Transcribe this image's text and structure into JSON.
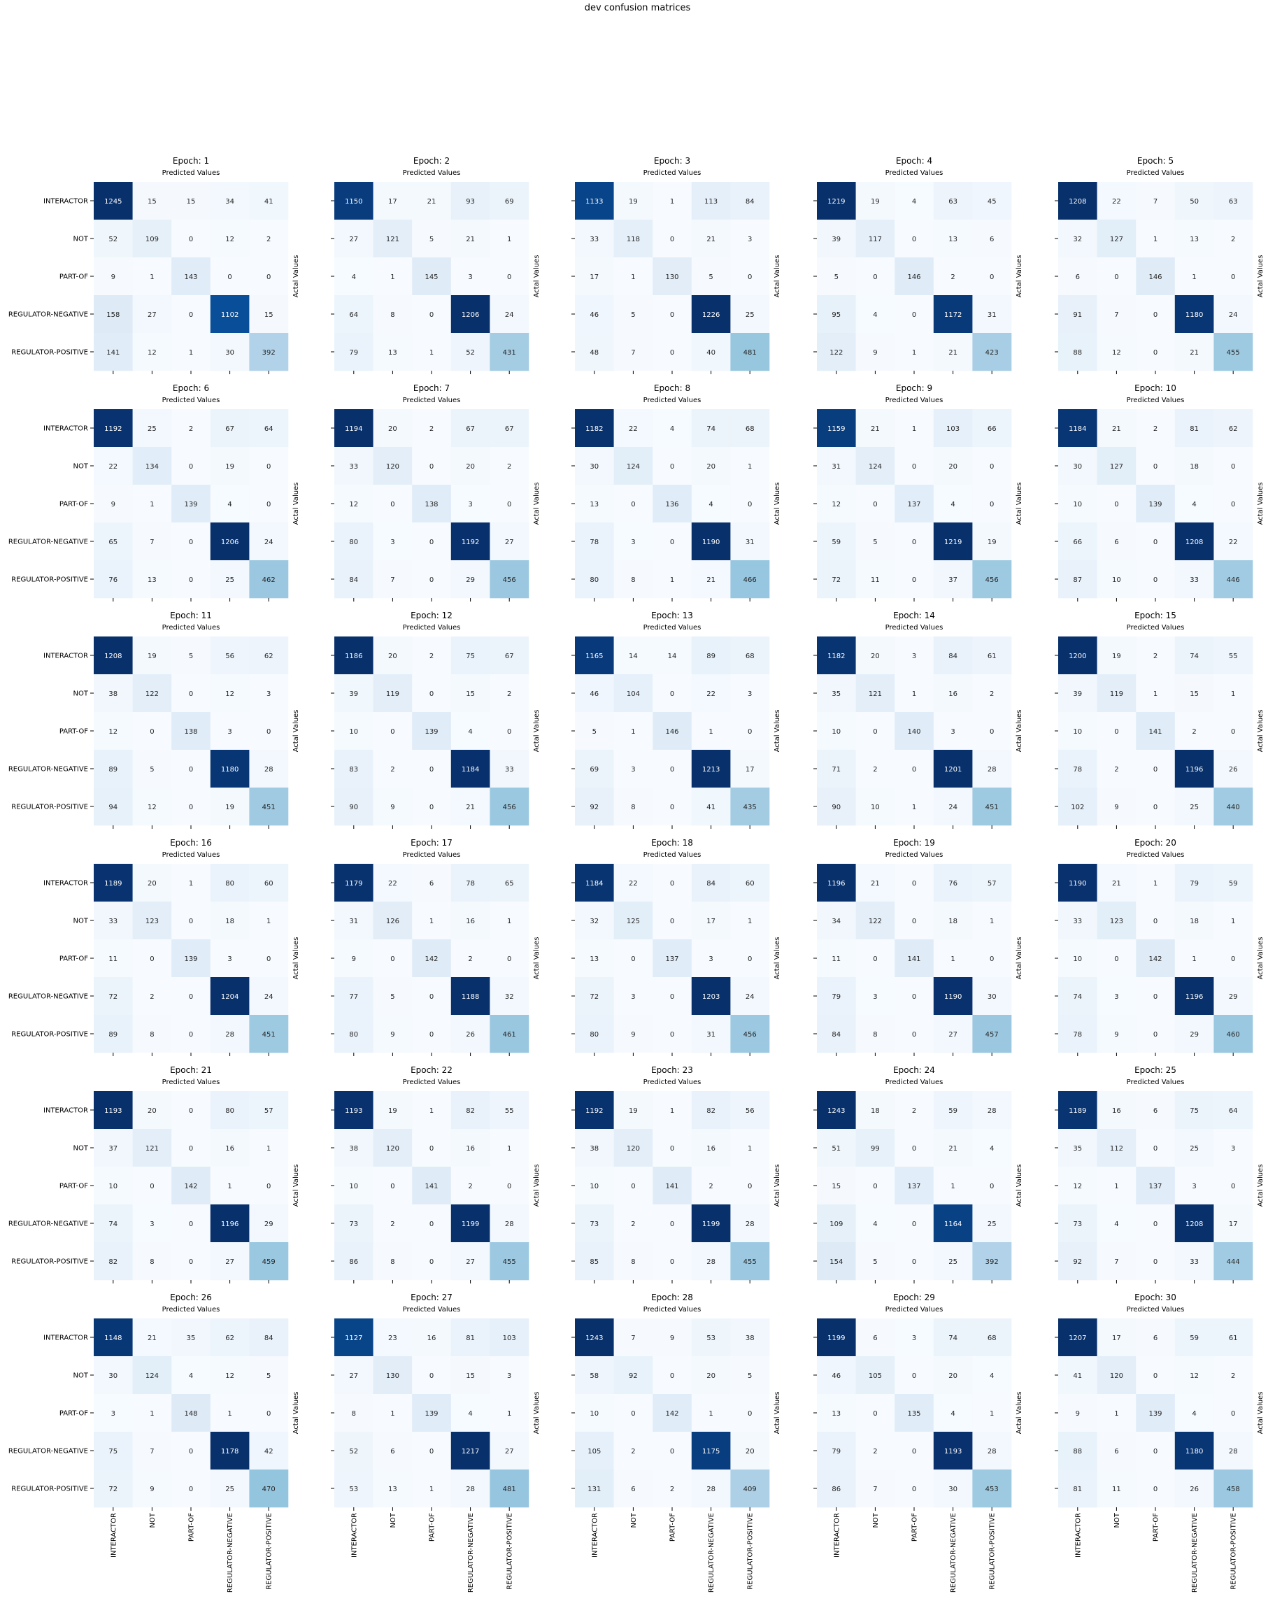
{
  "figure": {
    "title": "dev confusion matrices"
  },
  "colors": {
    "cmap": "Blues",
    "low": "#f7fbff",
    "high": "#08306b"
  },
  "chart_data": {
    "type": "heatmap",
    "labels": [
      "INTERACTOR",
      "NOT",
      "PART-OF",
      "REGULATOR-NEGATIVE",
      "REGULATOR-POSITIVE"
    ],
    "top_label": "Predicted Values",
    "side_label": "Actal Values",
    "grid": false,
    "colorscale": "Blues",
    "matrices": [
      {
        "title": "Epoch: 1",
        "values": [
          [
            1245,
            15,
            15,
            34,
            41
          ],
          [
            52,
            109,
            0,
            12,
            2
          ],
          [
            9,
            1,
            143,
            0,
            0
          ],
          [
            158,
            27,
            0,
            1102,
            15
          ],
          [
            141,
            12,
            1,
            30,
            392
          ]
        ]
      },
      {
        "title": "Epoch: 2",
        "values": [
          [
            1150,
            17,
            21,
            93,
            69
          ],
          [
            27,
            121,
            5,
            21,
            1
          ],
          [
            4,
            1,
            145,
            3,
            0
          ],
          [
            64,
            8,
            0,
            1206,
            24
          ],
          [
            79,
            13,
            1,
            52,
            431
          ]
        ]
      },
      {
        "title": "Epoch: 3",
        "values": [
          [
            1133,
            19,
            1,
            113,
            84
          ],
          [
            33,
            118,
            0,
            21,
            3
          ],
          [
            17,
            1,
            130,
            5,
            0
          ],
          [
            46,
            5,
            0,
            1226,
            25
          ],
          [
            48,
            7,
            0,
            40,
            481
          ]
        ]
      },
      {
        "title": "Epoch: 4",
        "values": [
          [
            1219,
            19,
            4,
            63,
            45
          ],
          [
            39,
            117,
            0,
            13,
            6
          ],
          [
            5,
            0,
            146,
            2,
            0
          ],
          [
            95,
            4,
            0,
            1172,
            31
          ],
          [
            122,
            9,
            1,
            21,
            423
          ]
        ]
      },
      {
        "title": "Epoch: 5",
        "values": [
          [
            1208,
            22,
            7,
            50,
            63
          ],
          [
            32,
            127,
            1,
            13,
            2
          ],
          [
            6,
            0,
            146,
            1,
            0
          ],
          [
            91,
            7,
            0,
            1180,
            24
          ],
          [
            88,
            12,
            0,
            21,
            455
          ]
        ]
      },
      {
        "title": "Epoch: 6",
        "values": [
          [
            1192,
            25,
            2,
            67,
            64
          ],
          [
            22,
            134,
            0,
            19,
            0
          ],
          [
            9,
            1,
            139,
            4,
            0
          ],
          [
            65,
            7,
            0,
            1206,
            24
          ],
          [
            76,
            13,
            0,
            25,
            462
          ]
        ]
      },
      {
        "title": "Epoch: 7",
        "values": [
          [
            1194,
            20,
            2,
            67,
            67
          ],
          [
            33,
            120,
            0,
            20,
            2
          ],
          [
            12,
            0,
            138,
            3,
            0
          ],
          [
            80,
            3,
            0,
            1192,
            27
          ],
          [
            84,
            7,
            0,
            29,
            456
          ]
        ]
      },
      {
        "title": "Epoch: 8",
        "values": [
          [
            1182,
            22,
            4,
            74,
            68
          ],
          [
            30,
            124,
            0,
            20,
            1
          ],
          [
            13,
            0,
            136,
            4,
            0
          ],
          [
            78,
            3,
            0,
            1190,
            31
          ],
          [
            80,
            8,
            1,
            21,
            466
          ]
        ]
      },
      {
        "title": "Epoch: 9",
        "values": [
          [
            1159,
            21,
            1,
            103,
            66
          ],
          [
            31,
            124,
            0,
            20,
            0
          ],
          [
            12,
            0,
            137,
            4,
            0
          ],
          [
            59,
            5,
            0,
            1219,
            19
          ],
          [
            72,
            11,
            0,
            37,
            456
          ]
        ]
      },
      {
        "title": "Epoch: 10",
        "values": [
          [
            1184,
            21,
            2,
            81,
            62
          ],
          [
            30,
            127,
            0,
            18,
            0
          ],
          [
            10,
            0,
            139,
            4,
            0
          ],
          [
            66,
            6,
            0,
            1208,
            22
          ],
          [
            87,
            10,
            0,
            33,
            446
          ]
        ]
      },
      {
        "title": "Epoch: 11",
        "values": [
          [
            1208,
            19,
            5,
            56,
            62
          ],
          [
            38,
            122,
            0,
            12,
            3
          ],
          [
            12,
            0,
            138,
            3,
            0
          ],
          [
            89,
            5,
            0,
            1180,
            28
          ],
          [
            94,
            12,
            0,
            19,
            451
          ]
        ]
      },
      {
        "title": "Epoch: 12",
        "values": [
          [
            1186,
            20,
            2,
            75,
            67
          ],
          [
            39,
            119,
            0,
            15,
            2
          ],
          [
            10,
            0,
            139,
            4,
            0
          ],
          [
            83,
            2,
            0,
            1184,
            33
          ],
          [
            90,
            9,
            0,
            21,
            456
          ]
        ]
      },
      {
        "title": "Epoch: 13",
        "values": [
          [
            1165,
            14,
            14,
            89,
            68
          ],
          [
            46,
            104,
            0,
            22,
            3
          ],
          [
            5,
            1,
            146,
            1,
            0
          ],
          [
            69,
            3,
            0,
            1213,
            17
          ],
          [
            92,
            8,
            0,
            41,
            435
          ]
        ]
      },
      {
        "title": "Epoch: 14",
        "values": [
          [
            1182,
            20,
            3,
            84,
            61
          ],
          [
            35,
            121,
            1,
            16,
            2
          ],
          [
            10,
            0,
            140,
            3,
            0
          ],
          [
            71,
            2,
            0,
            1201,
            28
          ],
          [
            90,
            10,
            1,
            24,
            451
          ]
        ]
      },
      {
        "title": "Epoch: 15",
        "values": [
          [
            1200,
            19,
            2,
            74,
            55
          ],
          [
            39,
            119,
            1,
            15,
            1
          ],
          [
            10,
            0,
            141,
            2,
            0
          ],
          [
            78,
            2,
            0,
            1196,
            26
          ],
          [
            102,
            9,
            0,
            25,
            440
          ]
        ]
      },
      {
        "title": "Epoch: 16",
        "values": [
          [
            1189,
            20,
            1,
            80,
            60
          ],
          [
            33,
            123,
            0,
            18,
            1
          ],
          [
            11,
            0,
            139,
            3,
            0
          ],
          [
            72,
            2,
            0,
            1204,
            24
          ],
          [
            89,
            8,
            0,
            28,
            451
          ]
        ]
      },
      {
        "title": "Epoch: 17",
        "values": [
          [
            1179,
            22,
            6,
            78,
            65
          ],
          [
            31,
            126,
            1,
            16,
            1
          ],
          [
            9,
            0,
            142,
            2,
            0
          ],
          [
            77,
            5,
            0,
            1188,
            32
          ],
          [
            80,
            9,
            0,
            26,
            461
          ]
        ]
      },
      {
        "title": "Epoch: 18",
        "values": [
          [
            1184,
            22,
            0,
            84,
            60
          ],
          [
            32,
            125,
            0,
            17,
            1
          ],
          [
            13,
            0,
            137,
            3,
            0
          ],
          [
            72,
            3,
            0,
            1203,
            24
          ],
          [
            80,
            9,
            0,
            31,
            456
          ]
        ]
      },
      {
        "title": "Epoch: 19",
        "values": [
          [
            1196,
            21,
            0,
            76,
            57
          ],
          [
            34,
            122,
            0,
            18,
            1
          ],
          [
            11,
            0,
            141,
            1,
            0
          ],
          [
            79,
            3,
            0,
            1190,
            30
          ],
          [
            84,
            8,
            0,
            27,
            457
          ]
        ]
      },
      {
        "title": "Epoch: 20",
        "values": [
          [
            1190,
            21,
            1,
            79,
            59
          ],
          [
            33,
            123,
            0,
            18,
            1
          ],
          [
            10,
            0,
            142,
            1,
            0
          ],
          [
            74,
            3,
            0,
            1196,
            29
          ],
          [
            78,
            9,
            0,
            29,
            460
          ]
        ]
      },
      {
        "title": "Epoch: 21",
        "values": [
          [
            1193,
            20,
            0,
            80,
            57
          ],
          [
            37,
            121,
            0,
            16,
            1
          ],
          [
            10,
            0,
            142,
            1,
            0
          ],
          [
            74,
            3,
            0,
            1196,
            29
          ],
          [
            82,
            8,
            0,
            27,
            459
          ]
        ]
      },
      {
        "title": "Epoch: 22",
        "values": [
          [
            1193,
            19,
            1,
            82,
            55
          ],
          [
            38,
            120,
            0,
            16,
            1
          ],
          [
            10,
            0,
            141,
            2,
            0
          ],
          [
            73,
            2,
            0,
            1199,
            28
          ],
          [
            86,
            8,
            0,
            27,
            455
          ]
        ]
      },
      {
        "title": "Epoch: 23",
        "values": [
          [
            1192,
            19,
            1,
            82,
            56
          ],
          [
            38,
            120,
            0,
            16,
            1
          ],
          [
            10,
            0,
            141,
            2,
            0
          ],
          [
            73,
            2,
            0,
            1199,
            28
          ],
          [
            85,
            8,
            0,
            28,
            455
          ]
        ]
      },
      {
        "title": "Epoch: 24",
        "values": [
          [
            1243,
            18,
            2,
            59,
            28
          ],
          [
            51,
            99,
            0,
            21,
            4
          ],
          [
            15,
            0,
            137,
            1,
            0
          ],
          [
            109,
            4,
            0,
            1164,
            25
          ],
          [
            154,
            5,
            0,
            25,
            392
          ]
        ]
      },
      {
        "title": "Epoch: 25",
        "values": [
          [
            1189,
            16,
            6,
            75,
            64
          ],
          [
            35,
            112,
            0,
            25,
            3
          ],
          [
            12,
            1,
            137,
            3,
            0
          ],
          [
            73,
            4,
            0,
            1208,
            17
          ],
          [
            92,
            7,
            0,
            33,
            444
          ]
        ]
      },
      {
        "title": "Epoch: 26",
        "values": [
          [
            1148,
            21,
            35,
            62,
            84
          ],
          [
            30,
            124,
            4,
            12,
            5
          ],
          [
            3,
            1,
            148,
            1,
            0
          ],
          [
            75,
            7,
            0,
            1178,
            42
          ],
          [
            72,
            9,
            0,
            25,
            470
          ]
        ]
      },
      {
        "title": "Epoch: 27",
        "values": [
          [
            1127,
            23,
            16,
            81,
            103
          ],
          [
            27,
            130,
            0,
            15,
            3
          ],
          [
            8,
            1,
            139,
            4,
            1
          ],
          [
            52,
            6,
            0,
            1217,
            27
          ],
          [
            53,
            13,
            1,
            28,
            481
          ]
        ]
      },
      {
        "title": "Epoch: 28",
        "values": [
          [
            1243,
            7,
            9,
            53,
            38
          ],
          [
            58,
            92,
            0,
            20,
            5
          ],
          [
            10,
            0,
            142,
            1,
            0
          ],
          [
            105,
            2,
            0,
            1175,
            20
          ],
          [
            131,
            6,
            2,
            28,
            409
          ]
        ]
      },
      {
        "title": "Epoch: 29",
        "values": [
          [
            1199,
            6,
            3,
            74,
            68
          ],
          [
            46,
            105,
            0,
            20,
            4
          ],
          [
            13,
            0,
            135,
            4,
            1
          ],
          [
            79,
            2,
            0,
            1193,
            28
          ],
          [
            86,
            7,
            0,
            30,
            453
          ]
        ]
      },
      {
        "title": "Epoch: 30",
        "values": [
          [
            1207,
            17,
            6,
            59,
            61
          ],
          [
            41,
            120,
            0,
            12,
            2
          ],
          [
            9,
            1,
            139,
            4,
            0
          ],
          [
            88,
            6,
            0,
            1180,
            28
          ],
          [
            81,
            11,
            0,
            26,
            458
          ]
        ]
      }
    ]
  }
}
